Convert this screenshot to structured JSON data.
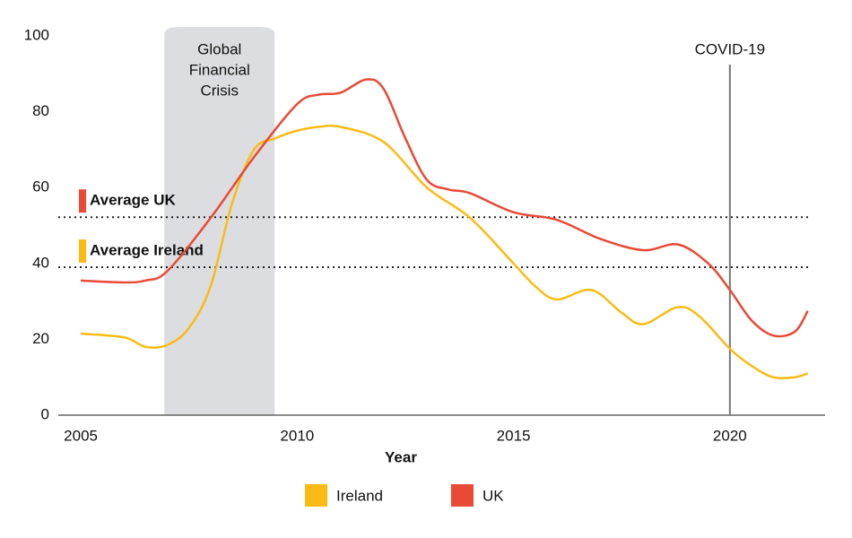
{
  "chart_data": {
    "type": "line",
    "x_label": "Year",
    "xlim": [
      2004.48,
      2022.2
    ],
    "xticks": [
      2005,
      2010,
      2015,
      2020
    ],
    "ylim": [
      0,
      100
    ],
    "yticks": [
      0,
      20,
      40,
      60,
      80,
      100
    ],
    "series": [
      {
        "name": "Ireland",
        "color": "#fbbb14",
        "x": [
          2005,
          2006,
          2006.5,
          2007,
          2007.5,
          2008,
          2008.5,
          2009,
          2009.5,
          2010,
          2010.5,
          2011,
          2012,
          2013,
          2014,
          2015,
          2015.5,
          2016,
          2016.8,
          2017.5,
          2018,
          2018.8,
          2019.3,
          2020,
          2020.5,
          2021,
          2021.5,
          2021.8
        ],
        "values": [
          21.5,
          20.5,
          18,
          18.5,
          23,
          34,
          56,
          70,
          73,
          75,
          76,
          76,
          72,
          60,
          52,
          40,
          34,
          30.5,
          33,
          27,
          24,
          28.5,
          26,
          17.5,
          13,
          10,
          10,
          11
        ]
      },
      {
        "name": "UK",
        "color": "#e84a35",
        "x": [
          2005,
          2006,
          2006.5,
          2007,
          2008,
          2009,
          2010,
          2010.5,
          2011,
          2011.6,
          2012,
          2012.5,
          2013,
          2013.5,
          2014,
          2015,
          2016,
          2017,
          2018,
          2018.8,
          2019.5,
          2020,
          2020.5,
          2021,
          2021.5,
          2021.8
        ],
        "values": [
          35.5,
          35,
          35.5,
          38,
          52,
          68,
          82,
          84.5,
          85,
          88.5,
          86,
          73,
          62,
          59.5,
          58.5,
          53.5,
          51.5,
          46.5,
          43.5,
          45,
          40,
          33,
          25,
          21,
          22,
          27.5
        ]
      }
    ],
    "averages": [
      {
        "label": "Average UK",
        "value": 52.2,
        "color": "#e84a35"
      },
      {
        "label": "Average Ireland",
        "value": 39,
        "color": "#fbbb14"
      }
    ],
    "shaded_region": {
      "label": [
        "Global",
        "Financial",
        "Crisis"
      ],
      "x": [
        2006.93,
        2009.48
      ]
    },
    "event_line": {
      "label": "COVID-19",
      "x": 2020
    }
  }
}
